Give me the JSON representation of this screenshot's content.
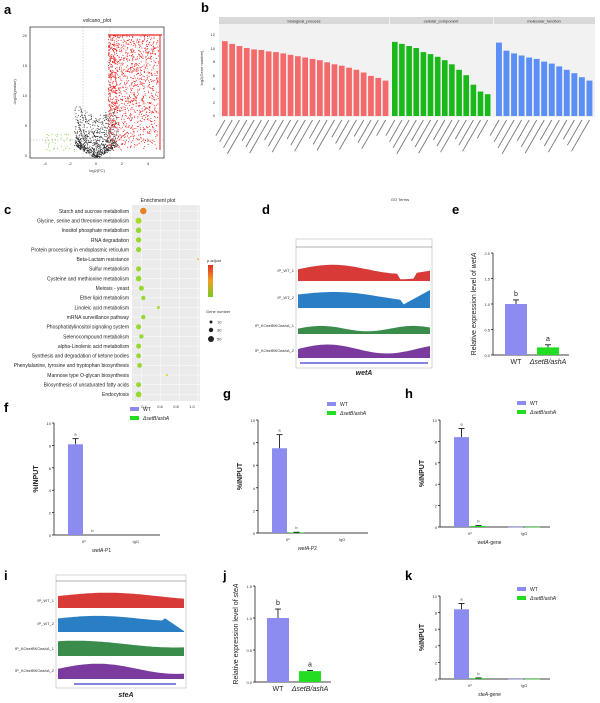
{
  "panel_labels": [
    "a",
    "b",
    "c",
    "d",
    "e",
    "f",
    "g",
    "h",
    "i",
    "j",
    "k"
  ],
  "colors": {
    "wt": "#8c8cf0",
    "mutant": "#22dd22",
    "bp": "#f46a6a",
    "cc": "#19b919",
    "mf": "#5b8ff5",
    "track_wt1": "#d83a38",
    "track_wt2": "#2a7fc4",
    "track_ko1": "#3a8c4a",
    "track_ko2": "#7a3a9e"
  },
  "panel_a": {
    "title": "volcano_plot",
    "xlabel": "log2(FC)",
    "ylabel": "-log10(pvalue)",
    "xticks": [
      "-4",
      "-2",
      "0",
      "2",
      "4"
    ],
    "yticks": [
      "0",
      "5",
      "10",
      "15",
      "20"
    ]
  },
  "panel_b": {
    "categories": [
      "biological_process",
      "cellular_component",
      "molecular_function"
    ],
    "ylabel": "log2(Gene number)",
    "xlabel": "GO Terms",
    "yticks": [
      "0",
      "2",
      "4",
      "6",
      "8",
      "10",
      "12"
    ]
  },
  "panel_c": {
    "title": "Enrichment plot",
    "pathways": [
      "Starch and sucrose metabolism",
      "Glycine, serine and threonine metabolism",
      "Inositol phosphate metabolism",
      "RNA degradation",
      "Protein processing in endoplasmic reticulum",
      "Beta-Lactam resistance",
      "Sulfur metabolism",
      "Cysteine and methionine metabolism",
      "Meiosis - yeast",
      "Ether lipid metabolism",
      "Linoleic acid metabolism",
      "mRNA surveillance pathway",
      "Phosphatidylinositol signaling system",
      "Selenocompound metabolism",
      "alpha-Linolenic acid metabolism",
      "Synthesis and degradation of ketone bodies",
      "Phenylalanine, tyrosine and tryptophan biosynthesis",
      "Mannose type O-glycan biosynthesis",
      "Biosynthesis of unsaturated fatty acids",
      "Endocytosis"
    ],
    "xticks": [
      "0.4",
      "0.6",
      "0.8",
      "1.0"
    ],
    "legend_color_title": "p.adjust",
    "legend_size_title": "Gene number",
    "size_labels": [
      "10",
      "30",
      "50"
    ]
  },
  "panel_d": {
    "tracks": [
      "IP_WT_1",
      "IP_WT_2",
      "IP_KOsetBKOashA_1",
      "IP_KOsetBKOashA_2"
    ],
    "gene": "wetA"
  },
  "panel_i": {
    "tracks": [
      "IP_WT_1",
      "IP_WT_2",
      "IP_KOsetBKOashA_1",
      "IP_KOsetBKOashA_2"
    ],
    "gene": "steA"
  },
  "panel_e": {
    "ylabel_prefix": "Relative expression level of ",
    "ylabel_gene": "wetA",
    "yticks": [
      "0.0",
      "0.5",
      "1.0",
      "1.5",
      "2.0"
    ],
    "categories": [
      "WT",
      "ΔsetB/ashA"
    ],
    "values": [
      1.0,
      0.15
    ],
    "errors": [
      0.08,
      0.05
    ],
    "letters": [
      "b",
      "a"
    ]
  },
  "panel_j": {
    "ylabel_prefix": "Relative expression level of ",
    "ylabel_gene": "steA",
    "yticks": [
      "0.0",
      "0.5",
      "1.0",
      "1.5"
    ],
    "categories": [
      "WT",
      "ΔsetB/ashA"
    ],
    "values": [
      1.0,
      0.17
    ],
    "errors": [
      0.14,
      0.01
    ],
    "letters": [
      "b",
      "a"
    ]
  },
  "chart_data": [
    {
      "type": "bar",
      "panel": "e",
      "title": "",
      "categories": [
        "WT",
        "ΔsetB/ashA"
      ],
      "values": [
        1.0,
        0.15
      ],
      "errors": [
        0.08,
        0.05
      ],
      "ylabel": "Relative expression level of wetA",
      "ylim": [
        0,
        2.0
      ]
    },
    {
      "type": "bar",
      "panel": "f",
      "categories": [
        "IP",
        "IgG"
      ],
      "series": [
        {
          "name": "WT",
          "values": [
            8.1,
            0
          ],
          "errors": [
            0.5,
            0
          ]
        },
        {
          "name": "ΔsetB/ashA",
          "values": [
            0,
            0
          ],
          "errors": [
            0,
            0
          ]
        }
      ],
      "xgroup_label_prefix": "wetA",
      "xgroup_label_suffix": "-P1",
      "ylabel": "%INPUT",
      "yticks": [
        "0",
        "2",
        "4",
        "6",
        "8",
        "10"
      ],
      "ylim": [
        0,
        10
      ],
      "letters": [
        "a",
        "b"
      ]
    },
    {
      "type": "bar",
      "panel": "g",
      "categories": [
        "IP",
        "IgG"
      ],
      "series": [
        {
          "name": "WT",
          "values": [
            7.5,
            0
          ],
          "errors": [
            1.2,
            0
          ]
        },
        {
          "name": "ΔsetB/ashA",
          "values": [
            0.05,
            0
          ],
          "errors": [
            0.02,
            0
          ]
        }
      ],
      "xgroup_label_prefix": "wetA",
      "xgroup_label_suffix": "-P2",
      "ylabel": "%INPUT",
      "yticks": [
        "0",
        "2",
        "4",
        "6",
        "8",
        "10"
      ],
      "ylim": [
        0,
        10
      ],
      "letters": [
        "a",
        "b"
      ]
    },
    {
      "type": "bar",
      "panel": "h",
      "categories": [
        "IP",
        "IgG"
      ],
      "series": [
        {
          "name": "WT",
          "values": [
            8.4,
            0.02
          ],
          "errors": [
            0.8,
            0
          ]
        },
        {
          "name": "ΔsetB/ashA",
          "values": [
            0.1,
            0.02
          ],
          "errors": [
            0.03,
            0
          ]
        }
      ],
      "xgroup_label_prefix": "wetA",
      "xgroup_label_suffix": "-gene",
      "ylabel": "%INPUT",
      "yticks": [
        "0",
        "2",
        "4",
        "6",
        "8",
        "10"
      ],
      "ylim": [
        0,
        10
      ],
      "letters": [
        "a",
        "b"
      ]
    },
    {
      "type": "bar",
      "panel": "j",
      "categories": [
        "WT",
        "ΔsetB/ashA"
      ],
      "values": [
        1.0,
        0.17
      ],
      "errors": [
        0.14,
        0.01
      ],
      "ylabel": "Relative expression level of steA",
      "ylim": [
        0,
        1.5
      ]
    },
    {
      "type": "bar",
      "panel": "k",
      "categories": [
        "IP",
        "IgG"
      ],
      "series": [
        {
          "name": "WT",
          "values": [
            8.4,
            0.02
          ],
          "errors": [
            0.7,
            0
          ]
        },
        {
          "name": "ΔsetB/ashA",
          "values": [
            0.1,
            0.02
          ],
          "errors": [
            0.03,
            0
          ]
        }
      ],
      "xgroup_label_prefix": "steA",
      "xgroup_label_suffix": "-gene",
      "ylabel": "%INPUT",
      "yticks": [
        "0",
        "2",
        "4",
        "6",
        "8",
        "10"
      ],
      "ylim": [
        0,
        10
      ],
      "letters": [
        "a",
        "b"
      ]
    }
  ]
}
